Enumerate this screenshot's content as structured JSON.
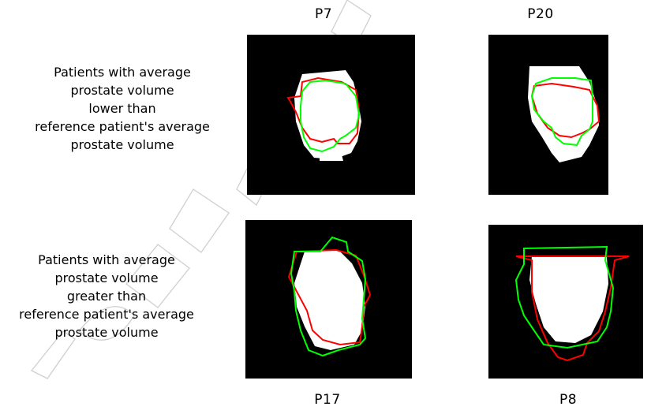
{
  "panels": [
    {
      "id": "P7",
      "row": "lower"
    },
    {
      "id": "P20",
      "row": "lower"
    },
    {
      "id": "P17",
      "row": "greater"
    },
    {
      "id": "P8",
      "row": "greater"
    }
  ],
  "row_labels": {
    "lower": [
      "Patients with average",
      "prostate volume",
      "lower than",
      "reference patient's average",
      "prostate volume"
    ],
    "greater": [
      "Patients with average",
      "prostate volume",
      "greater than",
      "reference patient's average",
      "prostate volume"
    ]
  },
  "colors": {
    "background": "#000000",
    "prostate": "#ffffff",
    "contour_red": "#ff0000",
    "contour_green": "#00ff00",
    "watermark": "#d6d6d6"
  },
  "watermark_text": "ACCEPTED MANUSCRIPT"
}
